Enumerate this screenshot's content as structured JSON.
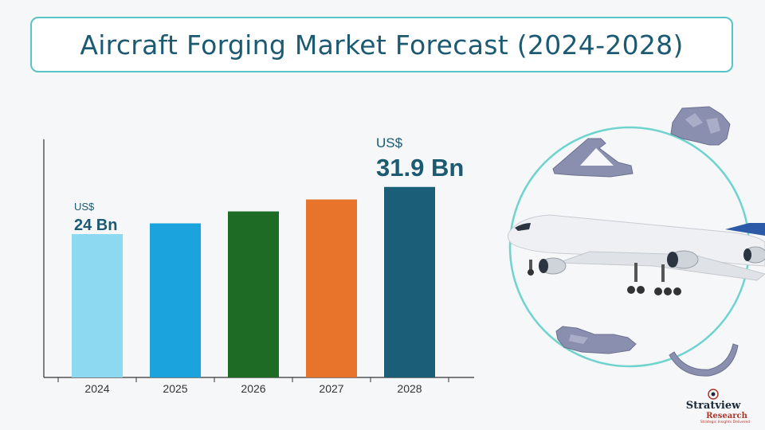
{
  "title": "Aircraft Forging Market Forecast (2024-2028)",
  "chart_data": {
    "type": "bar",
    "title": "Aircraft Forging Market Forecast (2024-2028)",
    "categories": [
      "2024",
      "2025",
      "2026",
      "2027",
      "2028"
    ],
    "values": [
      24,
      25.8,
      27.8,
      29.8,
      31.9
    ],
    "colors": [
      "#8dd9f2",
      "#1aa3dc",
      "#1e6b26",
      "#e8742c",
      "#1b5e78"
    ],
    "annotations": [
      {
        "category": "2024",
        "prefix": "US$",
        "value_label": "24 Bn",
        "size": "small"
      },
      {
        "category": "2028",
        "prefix": "US$",
        "value_label": "31.9 Bn",
        "size": "large"
      }
    ],
    "ylim": [
      0,
      40
    ],
    "grid": false,
    "legend": "none"
  },
  "logo": {
    "brand_line1": "Stratview",
    "brand_line2": "Research",
    "tagline": "Strategic Insights Delivered"
  },
  "illustration": {
    "subject": "airplane-icon",
    "parts": [
      "forged-bracket-icon",
      "forged-block-icon",
      "forged-frame-icon",
      "forged-ring-icon"
    ],
    "ring_color": "#6fd3cf"
  }
}
